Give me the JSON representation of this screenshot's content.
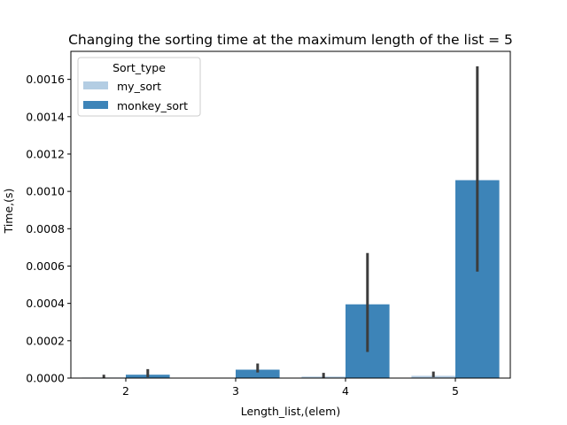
{
  "chart_data": {
    "type": "bar",
    "title": "Changing the sorting time at the maximum length of the list = 5",
    "xlabel": "Length_list,(elem)",
    "ylabel": "Time,(s)",
    "categories": [
      "2",
      "3",
      "4",
      "5"
    ],
    "ylim": [
      0,
      0.00175
    ],
    "yticks": [
      "0.0000",
      "0.0002",
      "0.0004",
      "0.0006",
      "0.0008",
      "0.0010",
      "0.0012",
      "0.0014",
      "0.0016"
    ],
    "ytick_values": [
      0,
      0.0002,
      0.0004,
      0.0006,
      0.0008,
      0.001,
      0.0012,
      0.0014,
      0.0016
    ],
    "legend": {
      "title": "Sort_type",
      "placement": "top-left"
    },
    "grid": false,
    "series": [
      {
        "name": "my_sort",
        "color": "#b3cde3",
        "values": [
          3e-06,
          2e-06,
          8e-06,
          1.2e-05
        ],
        "err_low": [
          0.0,
          0.0,
          2e-06,
          5e-06
        ],
        "err_high": [
          1.8e-05,
          0.0,
          2.8e-05,
          3.5e-05
        ]
      },
      {
        "name": "monkey_sort",
        "color": "#3d84b8",
        "values": [
          1.8e-05,
          4.5e-05,
          0.000395,
          0.00106
        ],
        "err_low": [
          5e-06,
          3e-05,
          0.00014,
          0.00057
        ],
        "err_high": [
          4.8e-05,
          7.8e-05,
          0.00067,
          0.00167
        ]
      }
    ]
  }
}
